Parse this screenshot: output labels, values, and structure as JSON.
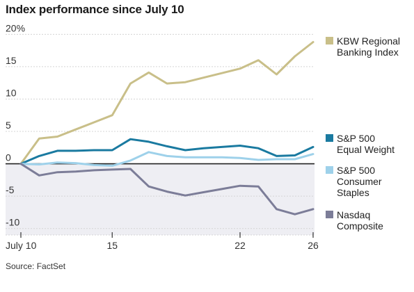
{
  "title": "Index performance since July 10",
  "source": "Source: FactSet",
  "chart_data": {
    "type": "line",
    "title": "Index performance since July 10",
    "xlabel": "",
    "ylabel": "",
    "ylim": [
      -11,
      21
    ],
    "xlim": [
      10,
      26
    ],
    "grid": true,
    "legend_position": "right",
    "x_ticks": [
      {
        "value": 10,
        "label": "July 10"
      },
      {
        "value": 15,
        "label": "15"
      },
      {
        "value": 22,
        "label": "22"
      },
      {
        "value": 26,
        "label": "26"
      }
    ],
    "y_ticks": [
      {
        "value": 20,
        "label": "20%"
      },
      {
        "value": 15,
        "label": "15"
      },
      {
        "value": 10,
        "label": "10"
      },
      {
        "value": 5,
        "label": "5"
      },
      {
        "value": 0,
        "label": "0"
      },
      {
        "value": -5,
        "label": "-5"
      },
      {
        "value": -10,
        "label": "-10"
      }
    ],
    "series": [
      {
        "name": "KBW Regional Banking Index",
        "legend_lines": [
          "KBW Regional",
          "Banking Index"
        ],
        "color": "#c9bf89",
        "x": [
          10,
          11,
          12,
          13,
          14,
          15,
          16,
          17,
          18,
          19,
          20,
          21,
          22,
          23,
          24,
          25,
          26
        ],
        "y": [
          0,
          3.9,
          4.2,
          5.3,
          6.4,
          7.5,
          12.4,
          14.1,
          12.4,
          12.6,
          13.3,
          14,
          14.7,
          16,
          13.8,
          16.6,
          18.8
        ]
      },
      {
        "name": "S&P 500 Equal Weight",
        "legend_lines": [
          "S&P 500",
          "Equal Weight"
        ],
        "color": "#1a7aa0",
        "x": [
          10,
          11,
          12,
          13,
          14,
          15,
          16,
          17,
          18,
          19,
          20,
          21,
          22,
          23,
          24,
          25,
          26
        ],
        "y": [
          0,
          1.2,
          2,
          2,
          2.1,
          2.1,
          3.8,
          3.4,
          2.7,
          2.1,
          2.4,
          2.6,
          2.8,
          2.4,
          1.2,
          1.3,
          2.6
        ]
      },
      {
        "name": "S&P 500 Consumer Staples",
        "legend_lines": [
          "S&P 500",
          "Consumer",
          "Staples"
        ],
        "color": "#9ed1ea",
        "x": [
          10,
          11,
          12,
          13,
          14,
          15,
          16,
          17,
          18,
          19,
          20,
          21,
          22,
          23,
          24,
          25,
          26
        ],
        "y": [
          0,
          -0.1,
          0.2,
          0.1,
          -0.2,
          -0.3,
          0.5,
          1.8,
          1.2,
          1,
          1,
          1,
          0.9,
          0.6,
          0.7,
          0.7,
          1.5
        ]
      },
      {
        "name": "Nasdaq Composite",
        "legend_lines": [
          "Nasdaq",
          "Composite"
        ],
        "color": "#7c7d98",
        "x": [
          10,
          11,
          12,
          13,
          14,
          15,
          16,
          17,
          18,
          19,
          20,
          21,
          22,
          23,
          24,
          25,
          26
        ],
        "y": [
          0,
          -1.8,
          -1.3,
          -1.2,
          -1,
          -0.9,
          -0.8,
          -3.5,
          -4.3,
          -4.9,
          -4.4,
          -3.9,
          -3.4,
          -3.5,
          -7,
          -7.8,
          -7
        ]
      }
    ]
  }
}
